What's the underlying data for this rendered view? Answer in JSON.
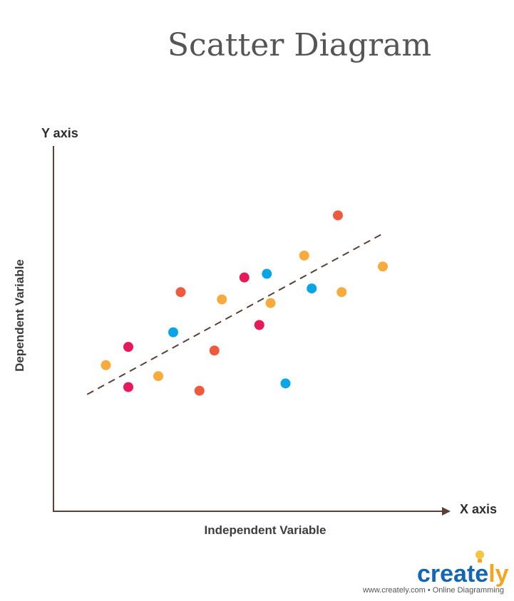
{
  "chart_data": {
    "type": "scatter",
    "title": "Scatter Diagram",
    "y_axis_end_label": "Y axis",
    "x_axis_end_label": "X axis",
    "xlabel": "Independent Variable",
    "ylabel": "Dependent Variable",
    "grid": false,
    "xlim": [
      0,
      100
    ],
    "ylim": [
      0,
      100
    ],
    "colors": {
      "red": "#f05a3c",
      "magenta": "#e6195a",
      "orange": "#f7ab3c",
      "blue": "#0aa5e6",
      "trendline": "#5a4137",
      "axis": "#5a4137"
    },
    "points": [
      {
        "x": 14,
        "y": 40,
        "color": "orange"
      },
      {
        "x": 20,
        "y": 45,
        "color": "magenta"
      },
      {
        "x": 20,
        "y": 34,
        "color": "magenta"
      },
      {
        "x": 28,
        "y": 37,
        "color": "orange"
      },
      {
        "x": 32,
        "y": 49,
        "color": "blue"
      },
      {
        "x": 34,
        "y": 60,
        "color": "red"
      },
      {
        "x": 39,
        "y": 33,
        "color": "red"
      },
      {
        "x": 43,
        "y": 44,
        "color": "red"
      },
      {
        "x": 45,
        "y": 58,
        "color": "orange"
      },
      {
        "x": 51,
        "y": 64,
        "color": "magenta"
      },
      {
        "x": 55,
        "y": 51,
        "color": "magenta"
      },
      {
        "x": 57,
        "y": 65,
        "color": "blue"
      },
      {
        "x": 58,
        "y": 57,
        "color": "orange"
      },
      {
        "x": 62,
        "y": 35,
        "color": "blue"
      },
      {
        "x": 67,
        "y": 70,
        "color": "orange"
      },
      {
        "x": 69,
        "y": 61,
        "color": "blue"
      },
      {
        "x": 76,
        "y": 81,
        "color": "red"
      },
      {
        "x": 77,
        "y": 60,
        "color": "orange"
      },
      {
        "x": 88,
        "y": 67,
        "color": "orange"
      }
    ],
    "trendline": {
      "x": [
        9,
        88
      ],
      "y": [
        32,
        76
      ],
      "style": "dashed"
    }
  },
  "branding": {
    "logo_main": "create",
    "logo_tail": "ly",
    "tagline": "www.creately.com • Online Diagramming"
  }
}
